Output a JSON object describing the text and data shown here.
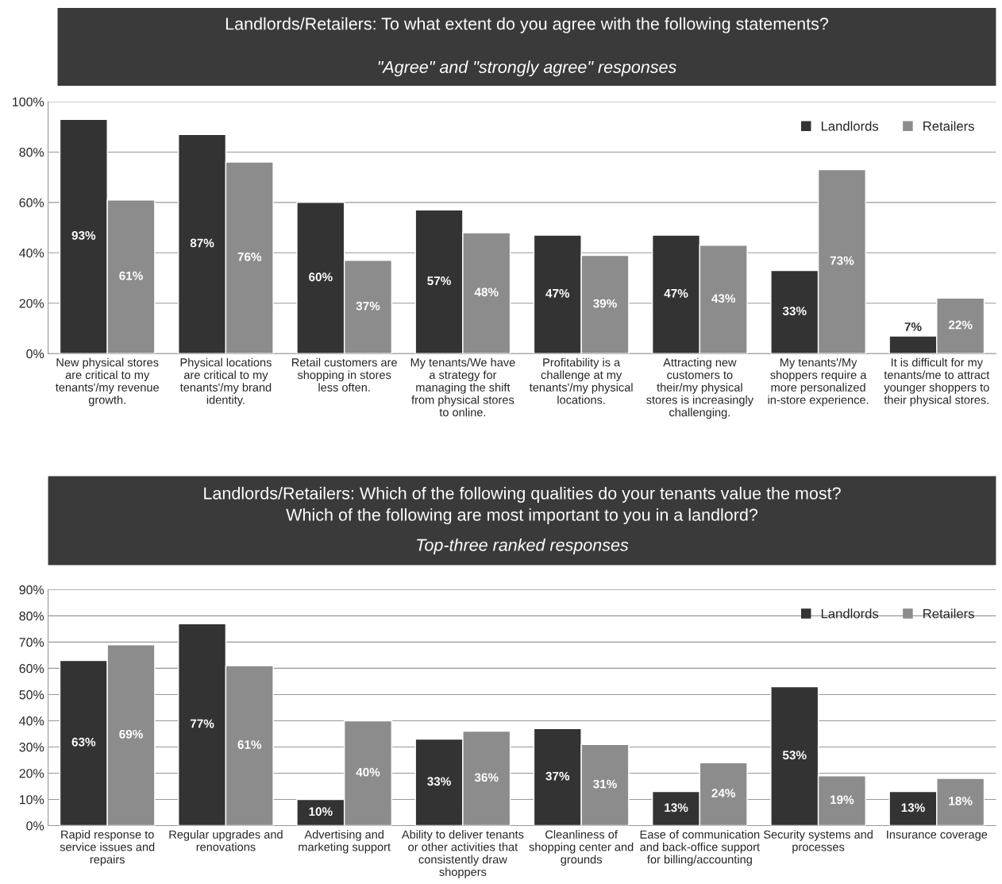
{
  "chart_data": [
    {
      "type": "bar",
      "title": "Landlords/Retailers: To what extent do you agree with the following statements?",
      "subtitle": "\"Agree\" and \"strongly agree\" responses",
      "categories": [
        "New physical stores\nare critical to my\ntenants'/my revenue\ngrowth.",
        "Physical locations\nare critical to my\ntenants'/my brand\nidentity.",
        "Retail customers are\nshopping in stores\nless often.",
        "My tenants/We have\na strategy for\nmanaging the shift\nfrom physical stores\nto online.",
        "Profitability is a\nchallenge at my\ntenants'/my physical\nlocations.",
        "Attracting new\ncustomers to\ntheir/my physical\nstores is increasingly\nchallenging.",
        "My tenants'/My\nshoppers require a\nmore personalized\nin-store experience.",
        "It is difficult for my\ntenants/me to attract\nyounger shoppers to\ntheir physical stores."
      ],
      "series": [
        {
          "name": "Landlords",
          "color": "#333333",
          "values": [
            93,
            87,
            60,
            57,
            47,
            47,
            33,
            7
          ],
          "value_labels": [
            "93%",
            "87%",
            "60%",
            "57%",
            "47%",
            "47%",
            "33%",
            "7%"
          ]
        },
        {
          "name": "Retailers",
          "color": "#8c8c8c",
          "values": [
            61,
            76,
            37,
            48,
            39,
            43,
            73,
            22
          ],
          "value_labels": [
            "61%",
            "76%",
            "37%",
            "48%",
            "39%",
            "43%",
            "73%",
            "22%"
          ]
        }
      ],
      "ylim": [
        0,
        100
      ],
      "yticks": [
        {
          "value": 0,
          "label": "0%"
        },
        {
          "value": 20,
          "label": "20%"
        },
        {
          "value": 40,
          "label": "40%"
        },
        {
          "value": 60,
          "label": "60%"
        },
        {
          "value": 80,
          "label": "80%"
        },
        {
          "value": 100,
          "label": "100%"
        }
      ],
      "grid": "y",
      "legend": "top right"
    },
    {
      "type": "bar",
      "title": "Landlords/Retailers: Which of the following qualities do your tenants value the most?\nWhich of the following are most important to you in a landlord?",
      "subtitle": "Top-three ranked responses",
      "categories": [
        "Rapid response to\nservice issues and\nrepairs",
        "Regular upgrades and\nrenovations",
        "Advertising and\nmarketing support",
        "Ability to deliver tenants\nor other activities that\nconsistently draw\nshoppers",
        "Cleanliness of\nshopping center and\ngrounds",
        "Ease of communication\nand back-office support\nfor billing/accounting",
        "Security systems and\nprocesses",
        "Insurance coverage"
      ],
      "series": [
        {
          "name": "Landlords",
          "color": "#333333",
          "values": [
            63,
            77,
            10,
            33,
            37,
            13,
            53,
            13
          ],
          "value_labels": [
            "63%",
            "77%",
            "10%",
            "33%",
            "37%",
            "13%",
            "53%",
            "13%"
          ]
        },
        {
          "name": "Retailers",
          "color": "#8c8c8c",
          "values": [
            69,
            61,
            40,
            36,
            31,
            24,
            19,
            18
          ],
          "value_labels": [
            "69%",
            "61%",
            "40%",
            "36%",
            "31%",
            "24%",
            "19%",
            "18%"
          ]
        }
      ],
      "ylim": [
        0,
        90
      ],
      "yticks": [
        {
          "value": 0,
          "label": "0%"
        },
        {
          "value": 10,
          "label": "10%"
        },
        {
          "value": 20,
          "label": "20%"
        },
        {
          "value": 30,
          "label": "30%"
        },
        {
          "value": 40,
          "label": "40%"
        },
        {
          "value": 50,
          "label": "50%"
        },
        {
          "value": 60,
          "label": "60%"
        },
        {
          "value": 70,
          "label": "70%"
        },
        {
          "value": 80,
          "label": "80%"
        },
        {
          "value": 90,
          "label": "90%"
        }
      ],
      "grid": "y",
      "legend": "top right"
    }
  ]
}
